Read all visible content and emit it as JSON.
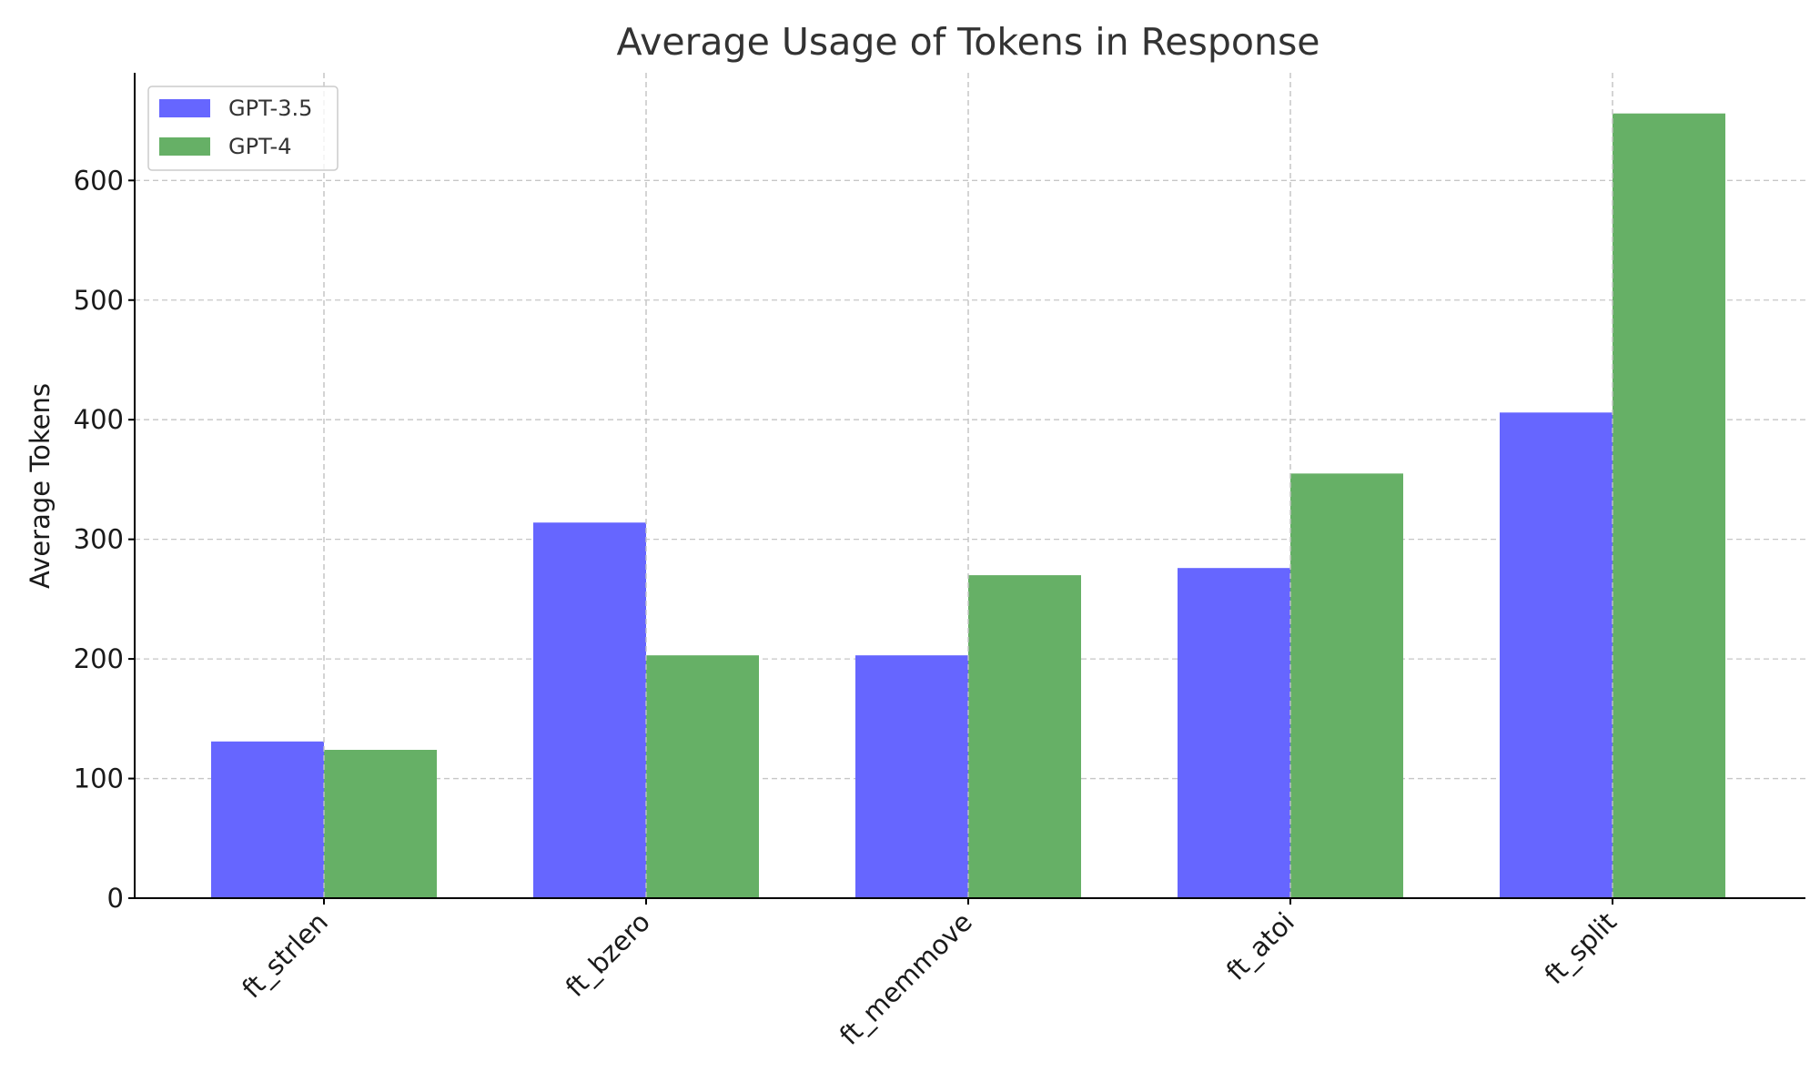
{
  "chart_data": {
    "type": "bar",
    "title": "Average Usage of Tokens in Response",
    "xlabel": "",
    "ylabel": "Average Tokens",
    "categories": [
      "ft_strlen",
      "ft_bzero",
      "ft_memmove",
      "ft_atoi",
      "ft_split"
    ],
    "series": [
      {
        "name": "GPT-3.5",
        "values": [
          131,
          314,
          203,
          276,
          406
        ],
        "color": "#6666ff"
      },
      {
        "name": "GPT-4",
        "values": [
          124,
          203,
          270,
          355,
          656
        ],
        "color": "#66b066"
      }
    ],
    "ylim": [
      0,
      690
    ],
    "yticks": [
      0,
      100,
      200,
      300,
      400,
      500,
      600
    ],
    "grid": true,
    "legend_position": "top-left"
  }
}
